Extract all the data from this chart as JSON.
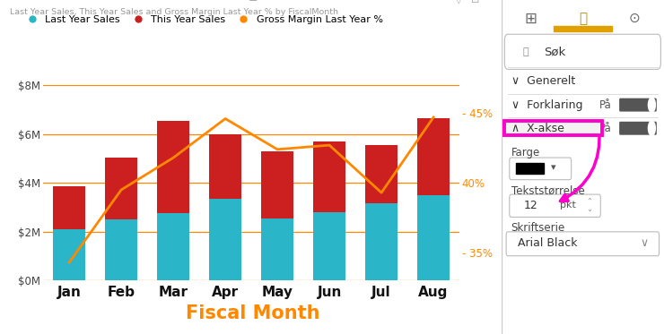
{
  "months": [
    "Jan",
    "Feb",
    "Mar",
    "Apr",
    "May",
    "Jun",
    "Jul",
    "Aug"
  ],
  "last_year_sales": [
    2.1,
    2.5,
    2.75,
    3.35,
    2.55,
    2.8,
    3.15,
    3.5
  ],
  "this_year_sales_total": [
    3.85,
    5.05,
    6.55,
    6.0,
    5.3,
    5.7,
    5.55,
    6.65
  ],
  "gross_margin_pct": [
    34.3,
    39.5,
    41.8,
    44.6,
    42.4,
    42.7,
    39.3,
    44.7
  ],
  "bar_color_lastyear": "#2ab5c8",
  "bar_color_thisyear": "#cc2020",
  "line_color": "#ff8800",
  "title": "Last Year Sales, This Year Sales and Gross Margin Last Year % by FiscalMonth",
  "xlabel": "Fiscal Month",
  "ylim_left": [
    0,
    8
  ],
  "ylim_right": [
    33.0,
    47.0
  ],
  "yticks_left": [
    0,
    2,
    4,
    6,
    8
  ],
  "ytick_labels_left": [
    "$0M",
    "$2M",
    "$4M",
    "$6M",
    "$8M"
  ],
  "ytick_right_vals": [
    35,
    40,
    45
  ],
  "ytick_right_labels": [
    "- 35%",
    "40%",
    "- 45%"
  ],
  "grid_color": "#ff8800",
  "title_color": "#999999",
  "xlabel_color": "#ff8800",
  "xlabel_fontsize": 15,
  "xtick_fontsize": 12,
  "legend_labels": [
    "Last Year Sales",
    "This Year Sales",
    "Gross Margin Last Year %"
  ],
  "legend_colors": [
    "#2ab5c8",
    "#cc2020",
    "#ff8800"
  ],
  "chart_bg": "#ffffff",
  "panel_bg": "#f2f2f2",
  "magenta": "#ff00cc"
}
